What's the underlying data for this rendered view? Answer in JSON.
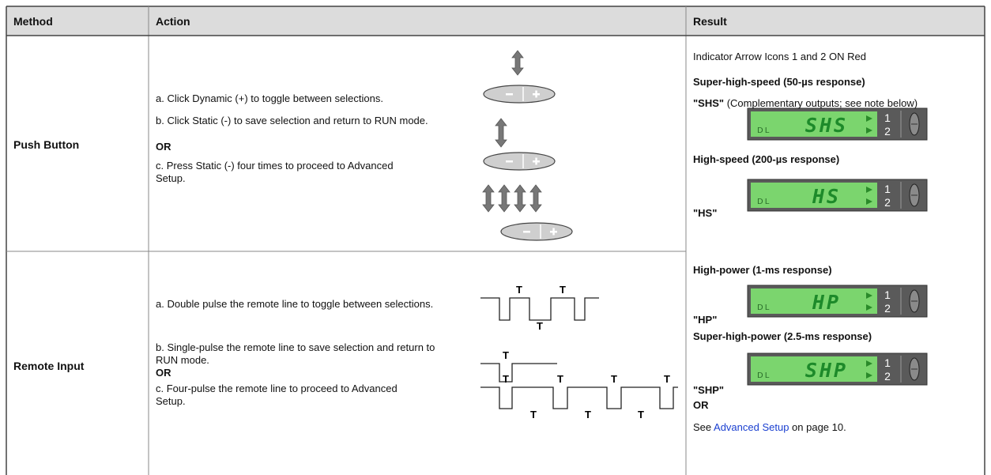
{
  "header": {
    "method": "Method",
    "action": "Action",
    "result": "Result"
  },
  "rows": [
    {
      "method": "Push Button",
      "steps": [
        "a. Click Dynamic (+) to toggle between selections.",
        "b. Click Static (-) to save selection and return to RUN mode.",
        "OR",
        "c. Press Static (-) four times to proceed to Advanced Setup."
      ]
    },
    {
      "method": "Remote Input",
      "steps": [
        "a. Double pulse the remote line to toggle between selections.",
        "b. Single-pulse the remote line to save selection and return to RUN mode.",
        "OR",
        "c. Four-pulse the remote line to proceed to Advanced Setup."
      ],
      "pulse_labels": [
        [
          "T",
          "T",
          "T"
        ],
        [
          "T"
        ],
        [
          "T",
          "T",
          "T",
          "T",
          "T",
          "T",
          "T"
        ]
      ]
    }
  ],
  "result": {
    "intro": "Indicator Arrow Icons 1 and 2 ON Red",
    "modes": [
      {
        "title": "Super-high-speed (50-µs response)",
        "code": "\"SHS\"",
        "note": "(Complementary outputs; see note below)",
        "display": {
          "brand": "DL",
          "text": "SHS",
          "outputs": [
            "1",
            "2"
          ]
        }
      },
      {
        "title": "High-speed (200-µs response)",
        "code": "\"HS\"",
        "display": {
          "brand": "DL",
          "text": "HS",
          "outputs": [
            "1",
            "2"
          ]
        }
      },
      {
        "title": "High-power (1-ms response)",
        "code": "\"HP\"",
        "display": {
          "brand": "DL",
          "text": "HP",
          "outputs": [
            "1",
            "2"
          ]
        }
      },
      {
        "title": "Super-high-power (2.5-ms response)",
        "code": "\"SHP\"",
        "display": {
          "brand": "DL",
          "text": "SHP",
          "outputs": [
            "1",
            "2"
          ]
        }
      }
    ],
    "or": "OR",
    "see": {
      "before": "See ",
      "link": "Advanced Setup",
      "after": " on page 10."
    }
  }
}
